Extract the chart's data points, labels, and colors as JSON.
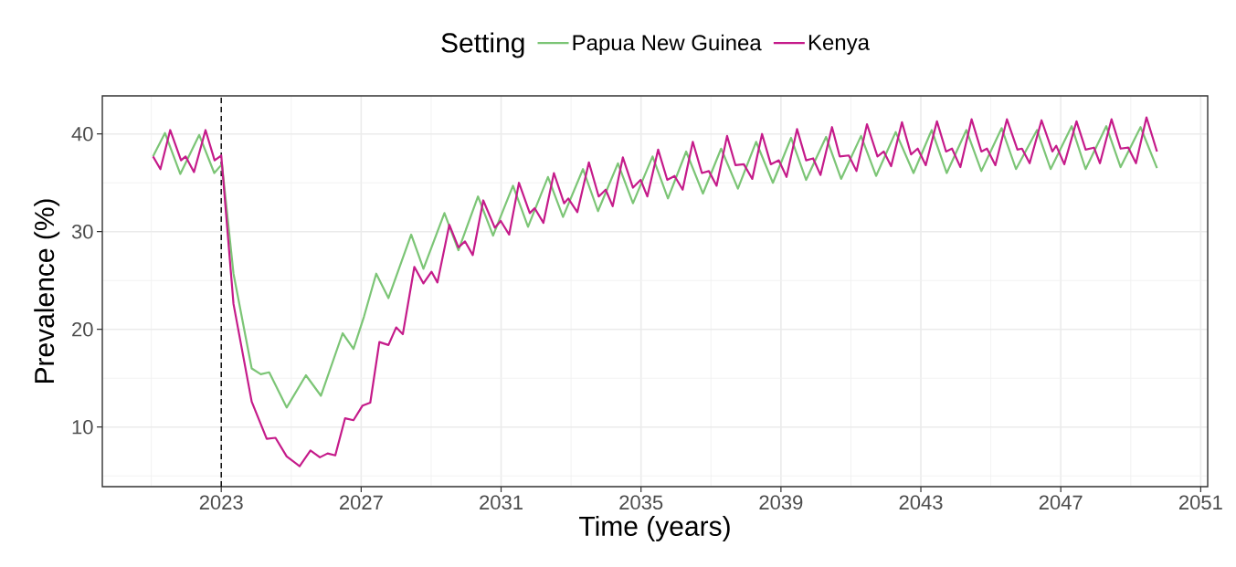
{
  "chart_data": {
    "type": "line",
    "xlabel": "Time (years)",
    "ylabel": "Prevalence (%)",
    "legend_title": "Setting",
    "xlim": [
      2019.6,
      2051.2
    ],
    "ylim": [
      3.9,
      43.9
    ],
    "xticks": [
      2023,
      2027,
      2031,
      2035,
      2039,
      2043,
      2047,
      2051
    ],
    "yticks": [
      10,
      20,
      30,
      40
    ],
    "grid": true,
    "legend": "top",
    "marker": "none",
    "line_style": "solid",
    "ref_lines": [
      {
        "axis": "x",
        "value": 2023,
        "color": "#000000",
        "line_style": "dashed"
      }
    ],
    "series": [
      {
        "name": "Papua New Guinea",
        "color": "#7CC576",
        "x": [
          2021.05,
          2021.39,
          2021.83,
          2022.37,
          2022.8,
          2023.02,
          2023.35,
          2023.87,
          2024.13,
          2024.37,
          2024.87,
          2025.42,
          2025.85,
          2026.47,
          2026.78,
          2027.08,
          2027.43,
          2027.78,
          2028.43,
          2028.78,
          2029.38,
          2029.78,
          2030.34,
          2030.77,
          2031.34,
          2031.77,
          2032.34,
          2032.77,
          2033.34,
          2033.77,
          2034.34,
          2034.77,
          2035.33,
          2035.77,
          2036.29,
          2036.77,
          2037.29,
          2037.77,
          2038.29,
          2038.77,
          2039.29,
          2039.72,
          2040.29,
          2040.72,
          2041.29,
          2041.72,
          2042.28,
          2042.79,
          2043.31,
          2043.74,
          2044.3,
          2044.73,
          2045.31,
          2045.72,
          2046.32,
          2046.71,
          2047.31,
          2047.71,
          2048.3,
          2048.71,
          2049.28,
          2049.75
        ],
        "values": [
          37.7,
          40.1,
          35.9,
          39.9,
          36.0,
          36.9,
          25.7,
          16.0,
          15.4,
          15.6,
          12.0,
          15.3,
          13.2,
          19.6,
          18.0,
          21.3,
          25.7,
          23.2,
          29.7,
          26.2,
          31.9,
          28.1,
          33.6,
          29.6,
          34.7,
          30.5,
          35.6,
          31.5,
          36.4,
          32.1,
          37.0,
          32.9,
          37.7,
          33.4,
          38.2,
          33.9,
          38.5,
          34.4,
          39.2,
          35.0,
          39.6,
          35.3,
          39.7,
          35.4,
          39.8,
          35.7,
          40.2,
          36.0,
          40.4,
          36.0,
          40.4,
          36.2,
          40.6,
          36.4,
          40.4,
          36.4,
          40.8,
          36.4,
          40.8,
          36.6,
          40.7,
          36.5
        ]
      },
      {
        "name": "Kenya",
        "color": "#C51B8A",
        "x": [
          2021.05,
          2021.26,
          2021.54,
          2021.85,
          2021.98,
          2022.22,
          2022.55,
          2022.81,
          2023.0,
          2023.35,
          2023.87,
          2024.3,
          2024.55,
          2024.87,
          2025.24,
          2025.55,
          2025.82,
          2026.04,
          2026.26,
          2026.54,
          2026.78,
          2027.04,
          2027.26,
          2027.52,
          2027.78,
          2028.0,
          2028.19,
          2028.52,
          2028.78,
          2029.01,
          2029.18,
          2029.52,
          2029.78,
          2029.97,
          2030.19,
          2030.49,
          2030.82,
          2030.99,
          2031.23,
          2031.51,
          2031.82,
          2031.96,
          2032.21,
          2032.51,
          2032.8,
          2032.92,
          2033.18,
          2033.51,
          2033.79,
          2033.99,
          2034.19,
          2034.48,
          2034.77,
          2034.99,
          2035.18,
          2035.49,
          2035.75,
          2035.96,
          2036.19,
          2036.48,
          2036.74,
          2036.94,
          2037.16,
          2037.46,
          2037.7,
          2037.94,
          2038.18,
          2038.46,
          2038.71,
          2038.94,
          2039.16,
          2039.46,
          2039.72,
          2039.92,
          2040.13,
          2040.46,
          2040.68,
          2040.94,
          2041.16,
          2041.46,
          2041.76,
          2041.94,
          2042.15,
          2042.46,
          2042.72,
          2042.91,
          2043.14,
          2043.46,
          2043.72,
          2043.89,
          2044.13,
          2044.45,
          2044.73,
          2044.89,
          2045.13,
          2045.46,
          2045.76,
          2045.89,
          2046.11,
          2046.45,
          2046.76,
          2046.87,
          2047.1,
          2047.45,
          2047.71,
          2047.95,
          2048.12,
          2048.45,
          2048.71,
          2048.93,
          2049.15,
          2049.45,
          2049.75
        ],
        "values": [
          37.7,
          36.4,
          40.4,
          37.3,
          37.7,
          36.1,
          40.4,
          37.3,
          37.8,
          22.6,
          12.6,
          8.8,
          8.9,
          7.0,
          6.0,
          7.6,
          6.9,
          7.3,
          7.1,
          10.9,
          10.7,
          12.2,
          12.5,
          18.7,
          18.4,
          20.2,
          19.5,
          26.4,
          24.7,
          25.9,
          24.8,
          30.7,
          28.4,
          29.0,
          27.6,
          33.2,
          30.4,
          31.1,
          29.7,
          35.0,
          31.9,
          32.4,
          30.9,
          36.0,
          32.9,
          33.4,
          32.0,
          37.1,
          33.6,
          34.3,
          32.6,
          37.6,
          34.5,
          35.3,
          33.6,
          38.4,
          35.3,
          35.7,
          34.3,
          39.2,
          36.0,
          36.2,
          34.7,
          39.8,
          36.8,
          36.9,
          35.4,
          40.0,
          36.9,
          37.3,
          35.6,
          40.5,
          37.3,
          37.5,
          35.8,
          40.7,
          37.7,
          37.8,
          36.2,
          41.0,
          37.7,
          38.2,
          36.7,
          41.2,
          37.9,
          38.5,
          36.8,
          41.3,
          38.2,
          38.5,
          36.6,
          41.5,
          38.2,
          38.5,
          36.8,
          41.5,
          38.4,
          38.5,
          37.0,
          41.4,
          38.2,
          38.8,
          36.9,
          41.3,
          38.4,
          38.6,
          37.0,
          41.5,
          38.5,
          38.6,
          37.0,
          41.7,
          38.2
        ]
      }
    ]
  }
}
